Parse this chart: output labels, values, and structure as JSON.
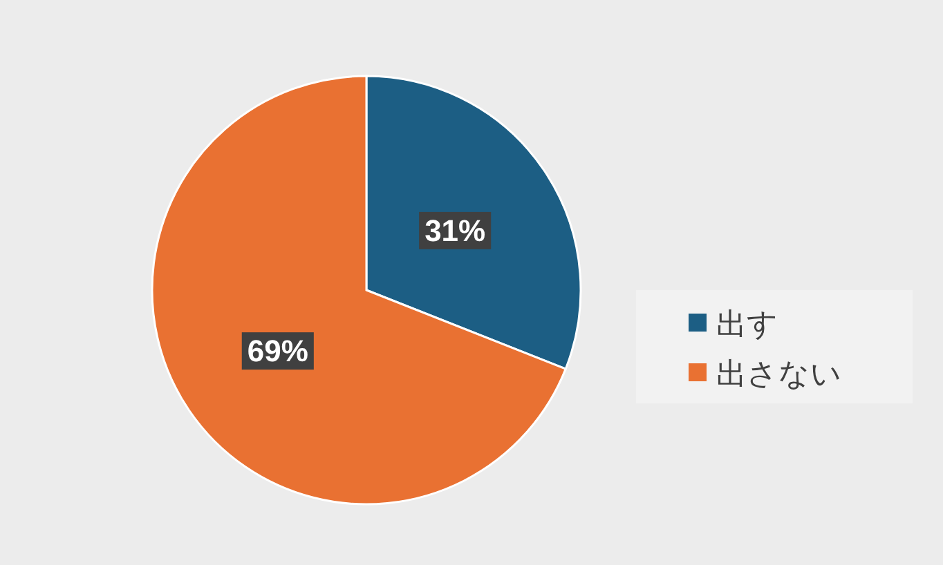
{
  "chart_data": {
    "type": "pie",
    "categories": [
      "出す",
      "出さない"
    ],
    "values": [
      31,
      69
    ],
    "colors": [
      "#1c5e84",
      "#e97132"
    ],
    "value_labels": [
      "31%",
      "69%"
    ],
    "legend": "right"
  }
}
